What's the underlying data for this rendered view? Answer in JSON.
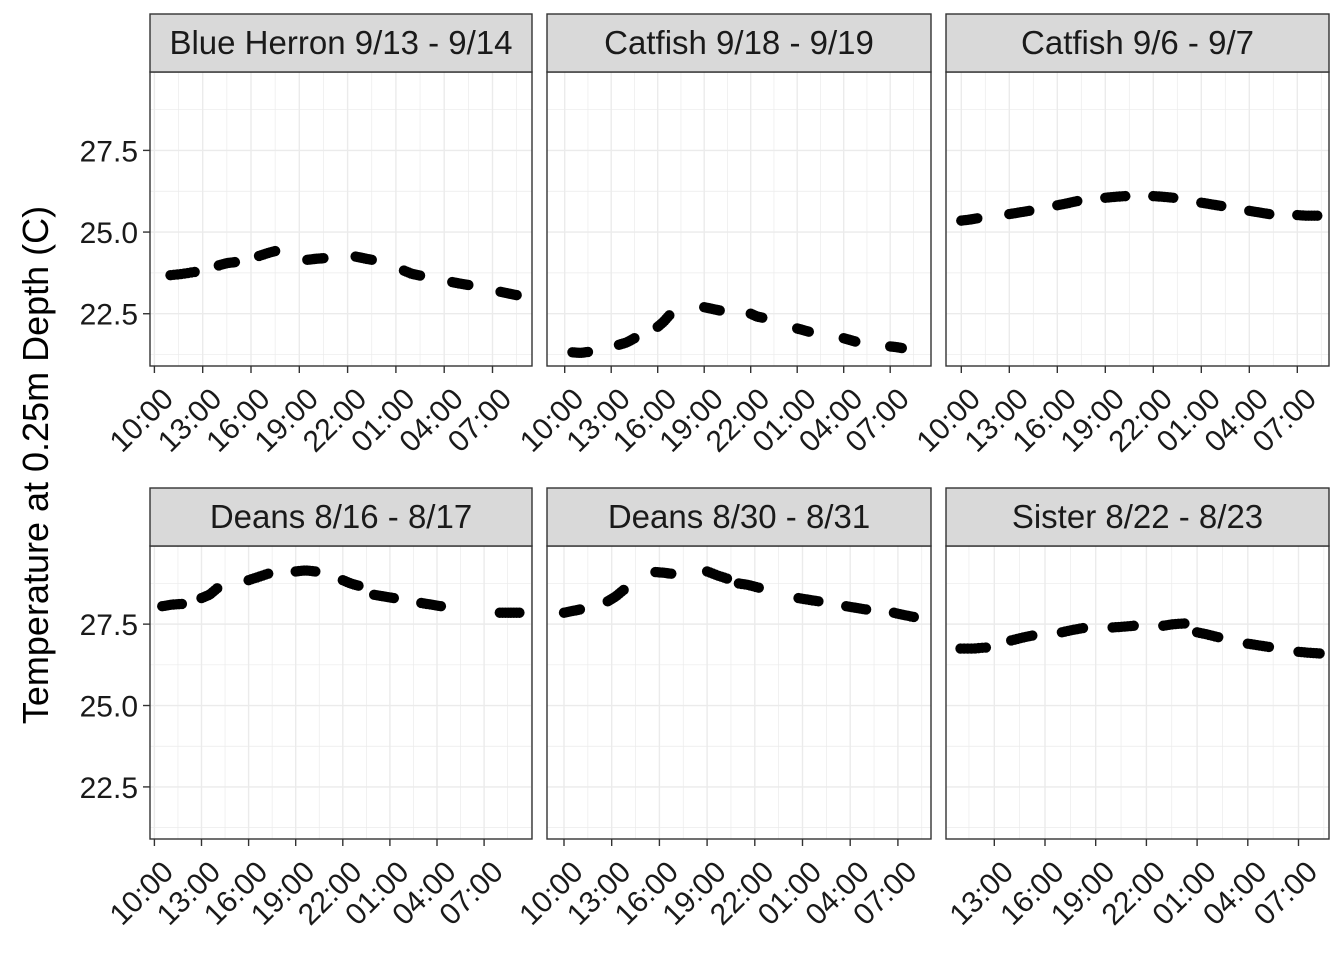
{
  "chart_data": {
    "type": "scatter",
    "ylabel": "Temperature at 0.25m Depth (C)",
    "ylim": [
      20.9,
      29.9
    ],
    "yticks": [
      22.5,
      25.0,
      27.5
    ],
    "ytick_labels": [
      "22.5",
      "25.0",
      "27.5"
    ],
    "grid": true,
    "point_color": "#000000",
    "strip_color": "#d9d9d9",
    "panels": [
      {
        "title": "Blue Herron 9/13 - 9/14",
        "x_ticks": [
          "10:00",
          "13:00",
          "16:00",
          "19:00",
          "22:00",
          "01:00",
          "04:00",
          "07:00"
        ],
        "segments": [
          {
            "start": "11:00",
            "end": "12:30",
            "values": [
              23.68,
              23.72,
              23.78
            ]
          },
          {
            "start": "14:00",
            "end": "15:00",
            "values": [
              23.98,
              24.05,
              24.08
            ]
          },
          {
            "start": "16:30",
            "end": "17:30",
            "values": [
              24.27,
              24.35,
              24.42
            ]
          },
          {
            "start": "19:30",
            "end": "20:30",
            "values": [
              24.15,
              24.18,
              24.2
            ]
          },
          {
            "start": "22:30",
            "end": "23:30",
            "values": [
              24.25,
              24.2,
              24.15
            ]
          },
          {
            "start": "01:30",
            "end": "02:30",
            "values": [
              23.82,
              23.72,
              23.67
            ]
          },
          {
            "start": "04:30",
            "end": "05:30",
            "values": [
              23.47,
              23.42,
              23.38
            ]
          },
          {
            "start": "07:30",
            "end": "08:30",
            "values": [
              23.17,
              23.12,
              23.07
            ]
          }
        ]
      },
      {
        "title": "Catfish 9/18 - 9/19",
        "x_ticks": [
          "10:00",
          "13:00",
          "16:00",
          "19:00",
          "22:00",
          "01:00",
          "04:00",
          "07:00"
        ],
        "segments": [
          {
            "start": "10:30",
            "end": "11:30",
            "values": [
              21.32,
              21.3,
              21.33
            ]
          },
          {
            "start": "13:30",
            "end": "14:30",
            "values": [
              21.55,
              21.62,
              21.75
            ]
          },
          {
            "start": "16:00",
            "end": "16:45",
            "values": [
              22.1,
              22.25,
              22.45
            ]
          },
          {
            "start": "19:00",
            "end": "20:00",
            "values": [
              22.7,
              22.65,
              22.6
            ]
          },
          {
            "start": "22:00",
            "end": "22:45",
            "values": [
              22.5,
              22.42,
              22.38
            ]
          },
          {
            "start": "01:00",
            "end": "01:45",
            "values": [
              22.05,
              22.0,
              21.95
            ]
          },
          {
            "start": "04:00",
            "end": "04:45",
            "values": [
              21.75,
              21.7,
              21.65
            ]
          },
          {
            "start": "07:00",
            "end": "07:45",
            "values": [
              21.5,
              21.48,
              21.45
            ]
          }
        ]
      },
      {
        "title": "Catfish 9/6 - 9/7",
        "x_ticks": [
          "10:00",
          "13:00",
          "16:00",
          "19:00",
          "22:00",
          "01:00",
          "04:00",
          "07:00"
        ],
        "segments": [
          {
            "start": "10:00",
            "end": "11:00",
            "values": [
              25.35,
              25.38,
              25.42
            ]
          },
          {
            "start": "13:00",
            "end": "14:15",
            "values": [
              25.55,
              25.6,
              25.65
            ]
          },
          {
            "start": "16:00",
            "end": "17:15",
            "values": [
              25.82,
              25.88,
              25.95
            ]
          },
          {
            "start": "19:00",
            "end": "20:15",
            "values": [
              26.05,
              26.08,
              26.1
            ]
          },
          {
            "start": "22:00",
            "end": "23:15",
            "values": [
              26.1,
              26.08,
              26.05
            ]
          },
          {
            "start": "01:00",
            "end": "02:15",
            "values": [
              25.9,
              25.85,
              25.8
            ]
          },
          {
            "start": "04:00",
            "end": "05:15",
            "values": [
              25.65,
              25.6,
              25.55
            ]
          },
          {
            "start": "07:00",
            "end": "08:15",
            "values": [
              25.52,
              25.5,
              25.5
            ]
          }
        ]
      },
      {
        "title": "Deans 8/16 - 8/17",
        "x_ticks": [
          "10:00",
          "13:00",
          "16:00",
          "19:00",
          "22:00",
          "01:00",
          "04:00",
          "07:00"
        ],
        "segments": [
          {
            "start": "10:30",
            "end": "11:45",
            "values": [
              28.05,
              28.1,
              28.12
            ]
          },
          {
            "start": "13:00",
            "end": "14:00",
            "values": [
              28.3,
              28.4,
              28.6
            ]
          },
          {
            "start": "16:00",
            "end": "17:15",
            "values": [
              28.85,
              28.95,
              29.05
            ]
          },
          {
            "start": "19:00",
            "end": "20:15",
            "values": [
              29.12,
              29.15,
              29.12
            ]
          },
          {
            "start": "22:00",
            "end": "23:00",
            "values": [
              28.85,
              28.75,
              28.68
            ]
          },
          {
            "start": "00:00",
            "end": "01:15",
            "values": [
              28.4,
              28.35,
              28.3
            ]
          },
          {
            "start": "03:00",
            "end": "04:15",
            "values": [
              28.15,
              28.1,
              28.05
            ]
          },
          {
            "start": "08:00",
            "end": "09:15",
            "values": [
              27.85,
              27.85,
              27.85
            ]
          }
        ]
      },
      {
        "title": "Deans 8/30 - 8/31",
        "x_ticks": [
          "10:00",
          "13:00",
          "16:00",
          "19:00",
          "22:00",
          "01:00",
          "04:00",
          "07:00"
        ],
        "segments": [
          {
            "start": "10:00",
            "end": "11:00",
            "values": [
              27.85,
              27.9,
              27.95
            ]
          },
          {
            "start": "12:45",
            "end": "13:45",
            "values": [
              28.2,
              28.35,
              28.55
            ]
          },
          {
            "start": "15:45",
            "end": "16:45",
            "values": [
              29.1,
              29.08,
              29.05
            ]
          },
          {
            "start": "19:00",
            "end": "20:15",
            "values": [
              29.12,
              29.0,
              28.9
            ]
          },
          {
            "start": "21:00",
            "end": "22:15",
            "values": [
              28.75,
              28.7,
              28.62
            ]
          },
          {
            "start": "00:45",
            "end": "02:00",
            "values": [
              28.3,
              28.25,
              28.2
            ]
          },
          {
            "start": "03:45",
            "end": "05:00",
            "values": [
              28.05,
              28.0,
              27.95
            ]
          },
          {
            "start": "06:45",
            "end": "08:00",
            "values": [
              27.85,
              27.78,
              27.72
            ]
          }
        ]
      },
      {
        "title": "Sister 8/22 - 8/23",
        "x_ticks": [
          "13:00",
          "16:00",
          "19:00",
          "22:00",
          "01:00",
          "04:00",
          "07:00"
        ],
        "segments": [
          {
            "start": "11:00",
            "end": "12:30",
            "values": [
              26.75,
              26.75,
              26.78
            ]
          },
          {
            "start": "14:00",
            "end": "15:15",
            "values": [
              27.0,
              27.08,
              27.15
            ]
          },
          {
            "start": "17:00",
            "end": "18:15",
            "values": [
              27.25,
              27.32,
              27.38
            ]
          },
          {
            "start": "20:00",
            "end": "21:15",
            "values": [
              27.4,
              27.42,
              27.45
            ]
          },
          {
            "start": "23:00",
            "end": "00:15",
            "values": [
              27.45,
              27.5,
              27.52
            ]
          },
          {
            "start": "01:00",
            "end": "02:15",
            "values": [
              27.25,
              27.18,
              27.1
            ]
          },
          {
            "start": "04:00",
            "end": "05:15",
            "values": [
              26.9,
              26.85,
              26.8
            ]
          },
          {
            "start": "07:00",
            "end": "08:15",
            "values": [
              26.65,
              26.62,
              26.6
            ]
          }
        ]
      }
    ]
  }
}
